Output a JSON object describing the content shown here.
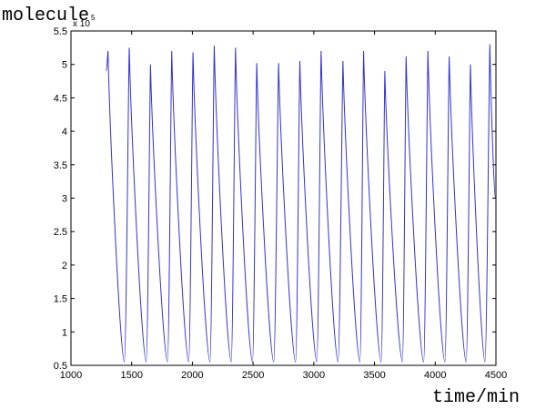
{
  "chart_data": {
    "type": "line",
    "title": "",
    "xlabel": "time/min",
    "ylabel": "molecule",
    "y_scale_note": "x 10^5",
    "y_scale_base": "x 10",
    "y_scale_exponent": "5",
    "xlim": [
      1000,
      4500
    ],
    "ylim": [
      0.5,
      5.5
    ],
    "x_ticks": [
      1000,
      1500,
      2000,
      2500,
      3000,
      3500,
      4000,
      4500
    ],
    "x_tick_labels": [
      "1000",
      "1500",
      "2000",
      "2500",
      "3000",
      "3500",
      "4000",
      "4500"
    ],
    "y_ticks": [
      0.5,
      1,
      1.5,
      2,
      2.5,
      3,
      3.5,
      4,
      4.5,
      5,
      5.5
    ],
    "y_tick_labels": [
      "0.5",
      "1",
      "1.5",
      "2",
      "2.5",
      "3",
      "3.5",
      "4",
      "4.5",
      "5",
      "5.5"
    ],
    "grid": false,
    "line_color": "#3333cc",
    "series": [
      {
        "points": [
          [
            1290,
            4.9
          ],
          [
            1305,
            5.2
          ],
          [
            1440,
            0.55
          ],
          [
            1480,
            5.25
          ],
          [
            1620,
            0.55
          ],
          [
            1655,
            5.0
          ],
          [
            1795,
            0.55
          ],
          [
            1830,
            5.2
          ],
          [
            1970,
            0.55
          ],
          [
            2005,
            5.18
          ],
          [
            2145,
            0.55
          ],
          [
            2180,
            5.28
          ],
          [
            2320,
            0.55
          ],
          [
            2355,
            5.25
          ],
          [
            2495,
            0.55
          ],
          [
            2530,
            5.02
          ],
          [
            2670,
            0.55
          ],
          [
            2710,
            5.02
          ],
          [
            2850,
            0.55
          ],
          [
            2885,
            5.05
          ],
          [
            3025,
            0.55
          ],
          [
            3060,
            5.2
          ],
          [
            3200,
            0.55
          ],
          [
            3240,
            5.05
          ],
          [
            3380,
            0.55
          ],
          [
            3410,
            5.2
          ],
          [
            3555,
            0.55
          ],
          [
            3585,
            4.9
          ],
          [
            3730,
            0.55
          ],
          [
            3760,
            5.12
          ],
          [
            3905,
            0.55
          ],
          [
            3940,
            5.2
          ],
          [
            4080,
            0.55
          ],
          [
            4115,
            5.12
          ],
          [
            4255,
            0.55
          ],
          [
            4290,
            5.0
          ],
          [
            4410,
            0.55
          ],
          [
            4450,
            5.3
          ],
          [
            4495,
            3.0
          ]
        ]
      }
    ]
  }
}
